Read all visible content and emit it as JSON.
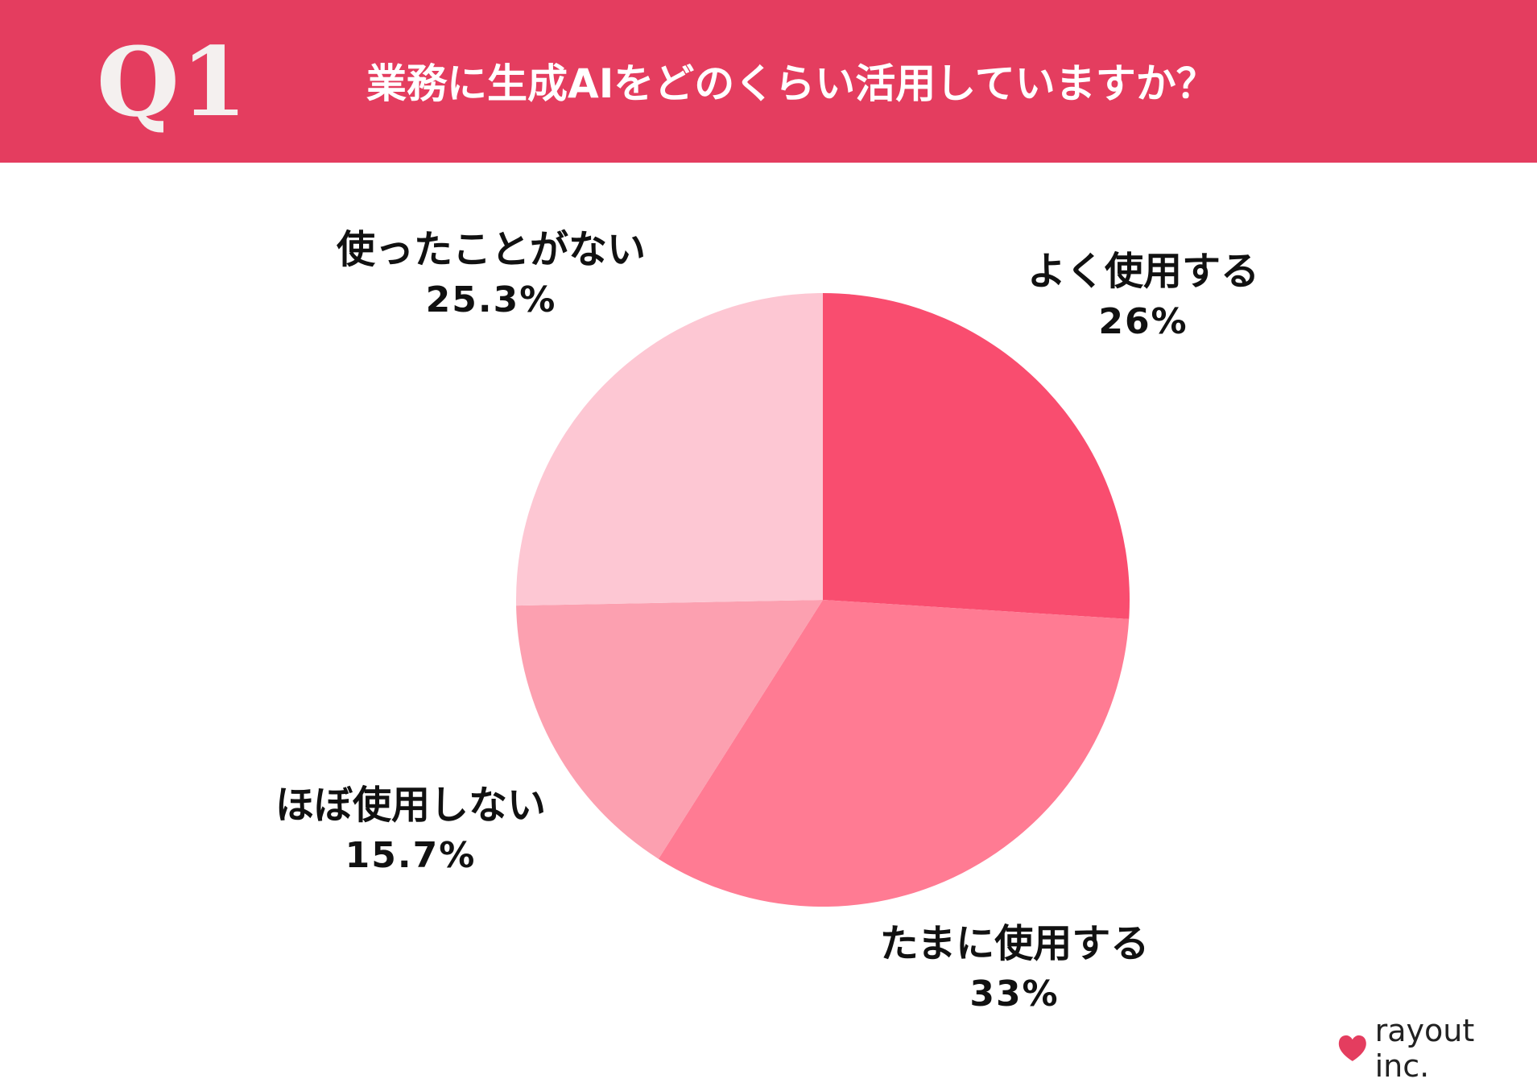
{
  "header": {
    "number": "Q1",
    "question": "業務に生成AIをどのくらい活用していますか？"
  },
  "chart_data": {
    "type": "pie",
    "start_angle_deg": 0,
    "direction": "clockwise",
    "slices": [
      {
        "label": "よく使用する",
        "value": 26,
        "value_label": "26%",
        "color": "#f94d6f"
      },
      {
        "label": "たまに使用する",
        "value": 33,
        "value_label": "33%",
        "color": "#ff7b93"
      },
      {
        "label": "ほぼ使用しない",
        "value": 15.7,
        "value_label": "15.7%",
        "color": "#fca0b0"
      },
      {
        "label": "使ったことがない",
        "value": 25.3,
        "value_label": "25.3%",
        "color": "#fdc7d3"
      }
    ]
  },
  "brand": {
    "name": "rayout inc.",
    "icon": "heart-icon",
    "color": "#e43d5f"
  }
}
